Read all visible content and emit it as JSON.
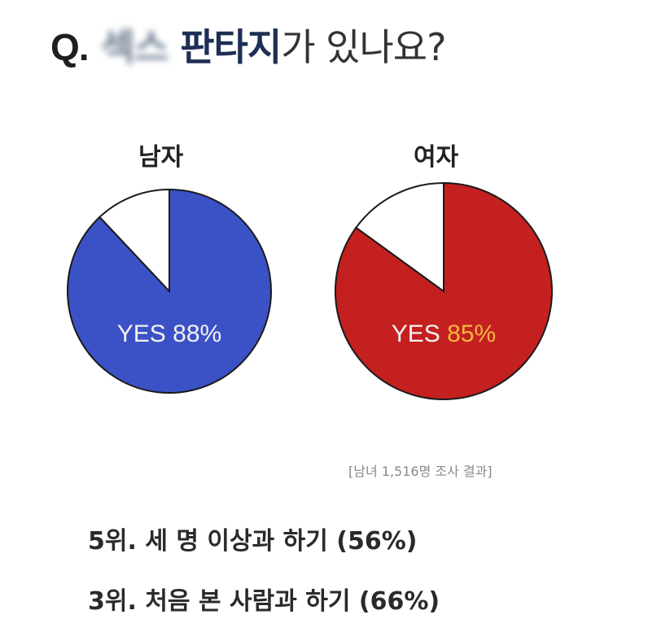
{
  "title": {
    "prefix": "Q.",
    "blurred": "섹스",
    "highlight": "판타지",
    "rest": "가 있나요?"
  },
  "chart_data": [
    {
      "type": "pie",
      "title": "남자",
      "slices": [
        {
          "label": "YES",
          "value": 88
        },
        {
          "label": "",
          "value": 12
        }
      ],
      "data_label": "YES 88%",
      "label_prefix": "YES",
      "label_value": "88%",
      "colors": [
        "#3b52c6",
        "#ffffff"
      ],
      "value_color": "#f2f2f2"
    },
    {
      "type": "pie",
      "title": "여자",
      "slices": [
        {
          "label": "YES",
          "value": 85
        },
        {
          "label": "",
          "value": 15
        }
      ],
      "data_label": "YES 85%",
      "label_prefix": "YES",
      "label_value": "85%",
      "colors": [
        "#c42020",
        "#ffffff"
      ],
      "value_color": "#f4b63f"
    }
  ],
  "note": "[남녀 1,516명 조사 결과]",
  "rankings": [
    "5위. 세 명 이상과 하기 (56%)",
    "3위. 처음 본 사람과 하기 (66%)"
  ]
}
